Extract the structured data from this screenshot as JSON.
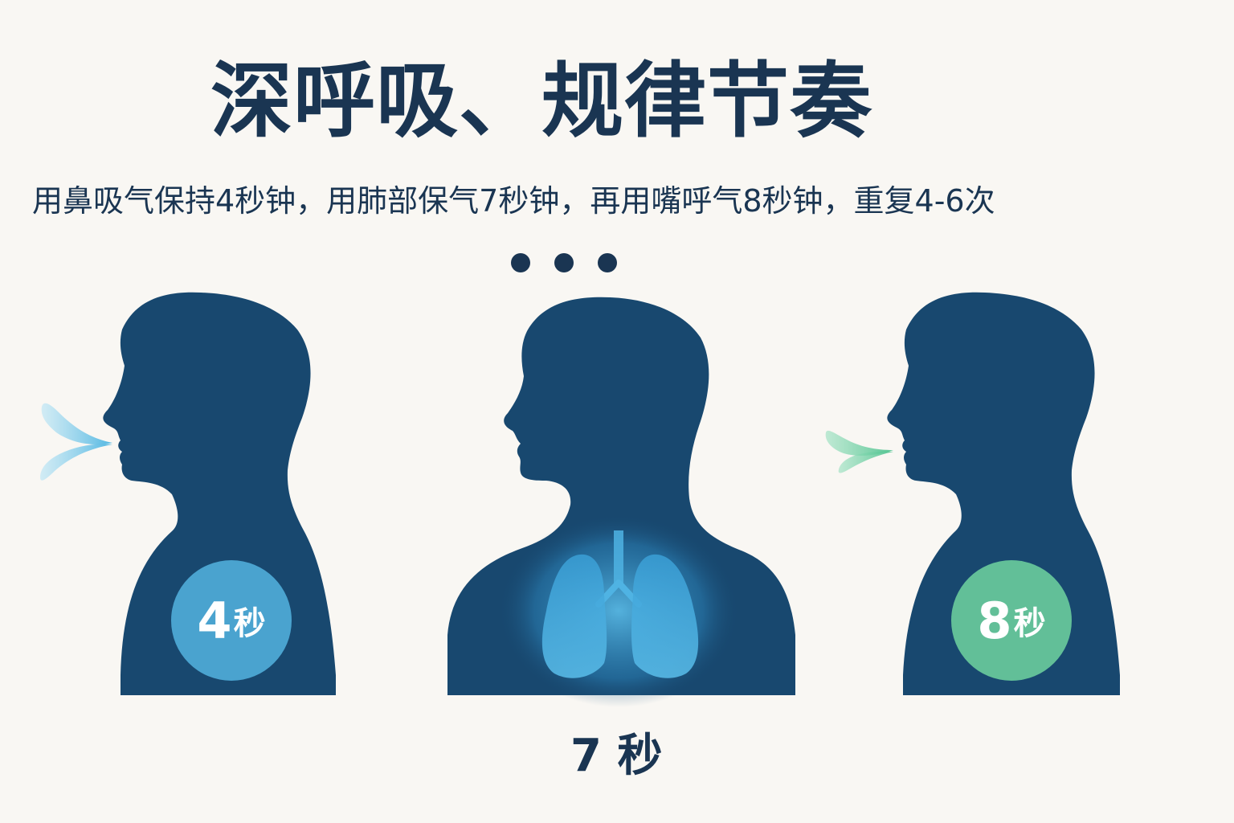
{
  "title": "深呼吸、规律节奏",
  "subtitle": "用鼻吸气保持4秒钟，用肺部保气7秒钟，再用嘴呼气8秒钟，重复4-6次",
  "steps": [
    {
      "phase": "inhale",
      "number": "4",
      "unit": "秒",
      "color": "#4aa3cf",
      "icon": "inhale-breath-icon"
    },
    {
      "phase": "hold",
      "label": "7 秒",
      "color": "#3b9fd6",
      "icon": "lungs-icon"
    },
    {
      "phase": "exhale",
      "number": "8",
      "unit": "秒",
      "color": "#62bf98",
      "icon": "exhale-breath-icon"
    }
  ],
  "colors": {
    "background": "#f9f7f3",
    "silhouette": "#18486f",
    "text": "#1a3552"
  }
}
